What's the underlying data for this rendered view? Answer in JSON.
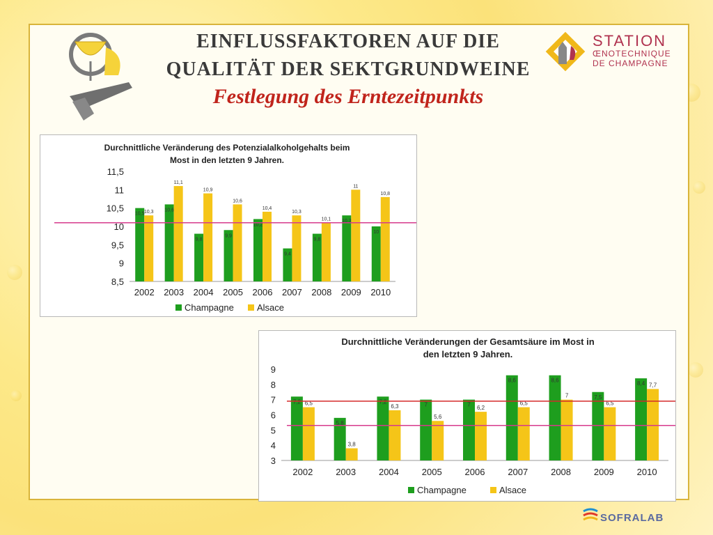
{
  "slide": {
    "title_line1": "EINFLUSSFAKTOREN AUF DIE",
    "title_line2": "QUALITÄT DER SEKTGRUNDWEINE",
    "subtitle": "Festlegung des Erntezeitpunkts"
  },
  "logo": {
    "line1": "STATION",
    "line2": "ŒNOTECHNIQUE",
    "line3": "DE CHAMPAGNE"
  },
  "footer_logo": "SOFRALAB",
  "colors": {
    "champagne": "#1e9e1e",
    "alsace": "#f5c518",
    "title_red": "#c0241c",
    "line1": "#d63a8c",
    "line2_red": "#d42a2a",
    "line2_pink": "#d63a8c"
  },
  "chart_data": [
    {
      "type": "bar",
      "title": "Durchnittliche Veränderung des Potenzialalkoholgehalts beim Most in den letzten 9 Jahren.",
      "title_line1": "Durchnittliche Veränderung des Potenzialalkoholgehalts beim",
      "title_line2": "Most in den letzten 9 Jahren.",
      "categories": [
        "2002",
        "2003",
        "2004",
        "2005",
        "2006",
        "2007",
        "2008",
        "2009",
        "2010"
      ],
      "series": [
        {
          "name": "Champagne",
          "values": [
            10.5,
            10.6,
            9.8,
            9.9,
            10.2,
            9.4,
            9.8,
            10.3,
            10.0
          ],
          "labels": [
            "10,5",
            "10,6",
            "9,8",
            "9,9",
            "10,2",
            "9,4",
            "9,8",
            "10,3",
            "10"
          ]
        },
        {
          "name": "Alsace",
          "values": [
            10.3,
            11.1,
            10.9,
            10.6,
            10.4,
            10.3,
            10.1,
            11.0,
            10.8
          ],
          "labels": [
            "10,3",
            "11,1",
            "10,9",
            "10,6",
            "10,4",
            "10,3",
            "10,1",
            "11",
            "10,8"
          ]
        }
      ],
      "ylim": [
        8.5,
        11.5
      ],
      "yticks": [
        "8,5",
        "9",
        "9,5",
        "10",
        "10,5",
        "11",
        "11,5"
      ],
      "reference_lines": [
        10.1
      ],
      "legend_position": "bottom"
    },
    {
      "type": "bar",
      "title": "Durchnittliche Veränderungen der Gesamtsäure im Most in den letzten 9 Jahren.",
      "title_line1": "Durchnittliche Veränderungen der Gesamtsäure im Most in",
      "title_line2": "den letzten 9 Jahren.",
      "categories": [
        "2002",
        "2003",
        "2004",
        "2005",
        "2006",
        "2007",
        "2008",
        "2009",
        "2010"
      ],
      "series": [
        {
          "name": "Champagne",
          "values": [
            7.2,
            5.8,
            7.2,
            7.0,
            7.0,
            8.6,
            8.6,
            7.5,
            8.4
          ],
          "labels": [
            "7,2",
            "5,8",
            "7,2",
            "7",
            "7",
            "8,6",
            "8,6",
            "7,5",
            "8,4"
          ]
        },
        {
          "name": "Alsace",
          "values": [
            6.5,
            3.8,
            6.3,
            5.6,
            6.2,
            6.5,
            7.0,
            6.5,
            7.7
          ],
          "labels": [
            "6,5",
            "3,8",
            "6,3",
            "5,6",
            "6,2",
            "6,5",
            "7",
            "6,5",
            "7,7"
          ]
        }
      ],
      "ylim": [
        3,
        9
      ],
      "yticks": [
        "3",
        "4",
        "5",
        "6",
        "7",
        "8",
        "9"
      ],
      "reference_lines": [
        6.9,
        5.3
      ],
      "legend_position": "bottom"
    }
  ]
}
